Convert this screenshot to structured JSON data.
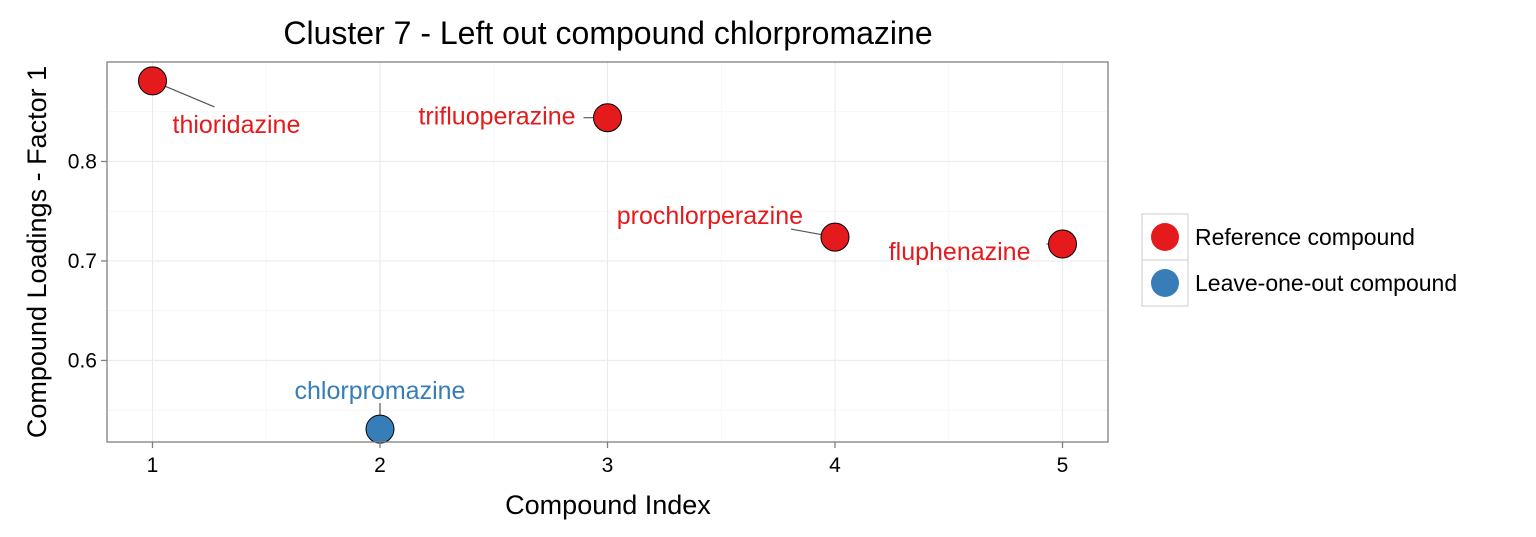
{
  "chart_data": {
    "type": "scatter",
    "title": "Cluster 7 - Left out compound chlorpromazine",
    "xlabel": "Compound Index",
    "ylabel": "Compound Loadings - Factor 1",
    "xlim": [
      0.8,
      5.2
    ],
    "ylim": [
      0.518,
      0.9
    ],
    "x_ticks": [
      1,
      2,
      3,
      4,
      5
    ],
    "y_ticks": [
      0.6,
      0.7,
      0.8
    ],
    "x_tick_labels": [
      "1",
      "2",
      "3",
      "4",
      "5"
    ],
    "y_tick_labels": [
      "0.6",
      "0.7",
      "0.8"
    ],
    "grid": true,
    "legend_position": "right",
    "colors": {
      "reference": "#e41a1c",
      "leave_one_out": "#377eb8"
    },
    "legend": [
      {
        "key": "reference",
        "label": "Reference compound"
      },
      {
        "key": "leave_one_out",
        "label": "Leave-one-out compound"
      }
    ],
    "points": [
      {
        "x": 1,
        "y": 0.881,
        "label": "thioridazine",
        "group": "reference"
      },
      {
        "x": 2,
        "y": 0.531,
        "label": "chlorpromazine",
        "group": "leave_one_out"
      },
      {
        "x": 3,
        "y": 0.844,
        "label": "trifluoperazine",
        "group": "reference"
      },
      {
        "x": 4,
        "y": 0.724,
        "label": "prochlorperazine",
        "group": "reference"
      },
      {
        "x": 5,
        "y": 0.717,
        "label": "fluphenazine",
        "group": "reference"
      }
    ]
  }
}
